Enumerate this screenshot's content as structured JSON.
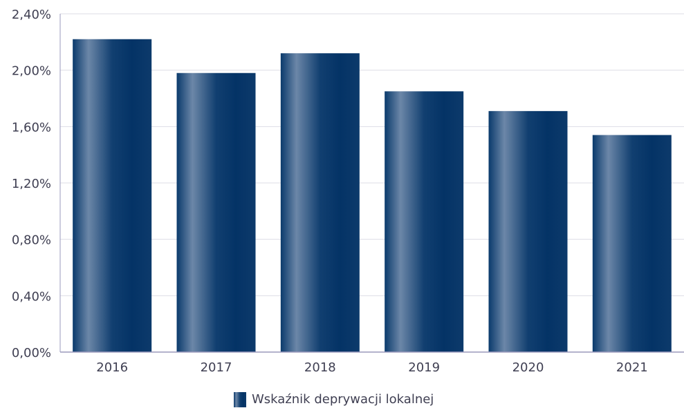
{
  "chart_data": {
    "type": "bar",
    "categories": [
      "2016",
      "2017",
      "2018",
      "2019",
      "2020",
      "2021"
    ],
    "series": [
      {
        "name": "Wskaźnik deprywacji lokalnej",
        "values": [
          2.22,
          1.98,
          2.12,
          1.85,
          1.71,
          1.54
        ]
      }
    ],
    "yticks": [
      "0,00%",
      "0,40%",
      "0,80%",
      "1,20%",
      "1,60%",
      "2,00%",
      "2,40%"
    ],
    "ylim": [
      0,
      2.4
    ],
    "title": "",
    "xlabel": "",
    "ylabel": "",
    "grid": true,
    "legend_position": "bottom",
    "colors": {
      "bar_dark": "#043366",
      "bar_light": "#6c87a8",
      "grid": "#dddde6",
      "axis": "#9a98bc",
      "text": "#3f3f52"
    }
  }
}
